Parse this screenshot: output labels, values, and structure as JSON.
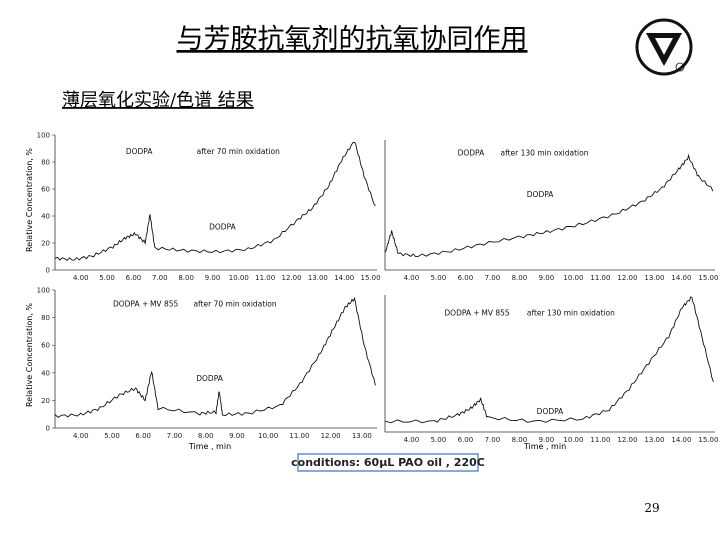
{
  "title": "与芳胺抗氧剂的抗氧协同作用",
  "subtitle": "薄层氧化实验/色谱  结果",
  "y_axis_label": "Relative Concentration, %",
  "x_axis_label": "Time , min",
  "conditions": "conditions: 60μL PAO oil , 220C",
  "page_number": "29",
  "panels": [
    {
      "name": "DODPA",
      "plus": null,
      "note": "after 70 min oxidation",
      "peak_label": "DODPA",
      "yticks": [
        "0",
        "20",
        "40",
        "60",
        "80",
        "100"
      ],
      "xticks": [
        "4.00",
        "5.00",
        "6.00",
        "7.00",
        "8.00",
        "9.00",
        "10.00",
        "11.00",
        "12.00",
        "13.00",
        "14.00",
        "15.00"
      ]
    },
    {
      "name": "DODPA",
      "plus": null,
      "note": "after 130 min oxidation",
      "peak_label": "DODPA",
      "yticks": [],
      "xticks": [
        "4.00",
        "5.00",
        "6.00",
        "7.00",
        "8.00",
        "9.00",
        "10.00",
        "11.00",
        "12.00",
        "13.00",
        "14.00",
        "15.00"
      ]
    },
    {
      "name": "DODPA +",
      "plus": "MV 855",
      "note": "after 70 min oxidation",
      "peak_label": "DODPA",
      "yticks": [
        "0",
        "20",
        "40",
        "60",
        "80",
        "100"
      ],
      "xticks": [
        "4.00",
        "5.00",
        "6.00",
        "7.00",
        "8.00",
        "9.00",
        "10.00",
        "11.00",
        "12.00",
        "13.00"
      ]
    },
    {
      "name": "DODPA +",
      "plus": "MV 855",
      "note": "after 130 min oxidation",
      "peak_label": "DODPA",
      "yticks": [],
      "xticks": [
        "4.00",
        "5.00",
        "6.00",
        "7.00",
        "8.00",
        "9.00",
        "10.00",
        "11.00",
        "12.00",
        "13.00",
        "14.00",
        "15.00"
      ]
    }
  ]
}
